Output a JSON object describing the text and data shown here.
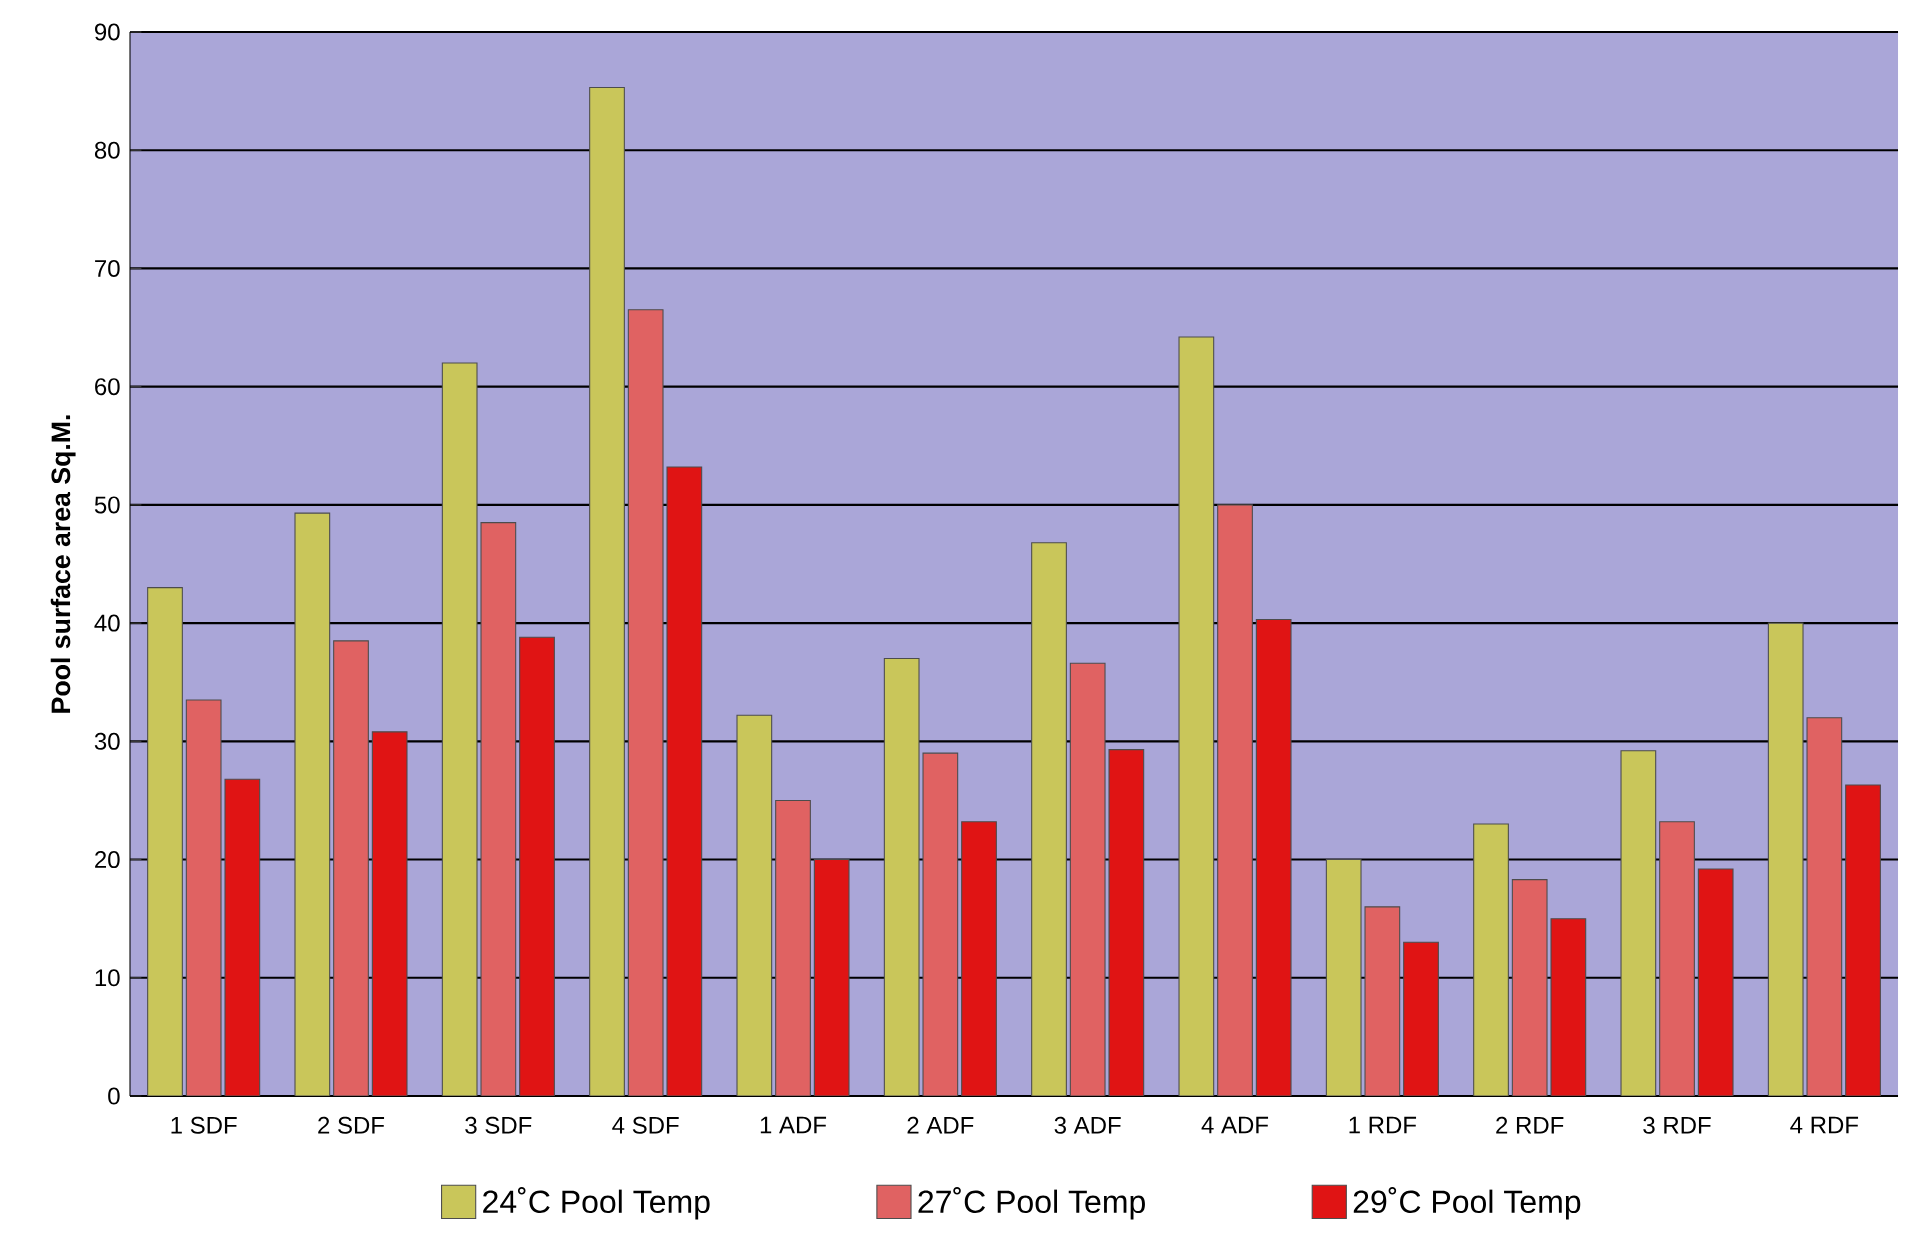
{
  "chart_data": {
    "type": "bar",
    "ylabel": "Pool surface area Sq.M.",
    "categories": [
      "1 SDF",
      "2 SDF",
      "3 SDF",
      "4 SDF",
      "1 ADF",
      "2 ADF",
      "3 ADF",
      "4 ADF",
      "1 RDF",
      "2 RDF",
      "3 RDF",
      "4 RDF"
    ],
    "series": [
      {
        "name": "24˚C Pool Temp",
        "color": "#c9c65a",
        "values": [
          43,
          49.3,
          62,
          85.3,
          32.2,
          37,
          46.8,
          64.2,
          20,
          23,
          29.2,
          40
        ]
      },
      {
        "name": "27˚C Pool Temp",
        "color": "#e06262",
        "values": [
          33.5,
          38.5,
          48.5,
          66.5,
          25,
          29,
          36.6,
          50,
          16,
          18.3,
          23.2,
          32
        ]
      },
      {
        "name": "29˚C Pool Temp",
        "color": "#e01414",
        "values": [
          26.8,
          30.8,
          38.8,
          53.2,
          20,
          23.2,
          29.3,
          40.3,
          13,
          15,
          19.2,
          26.3
        ]
      }
    ],
    "ylim": [
      0,
      90
    ],
    "yticks": [
      0,
      10,
      20,
      30,
      40,
      50,
      60,
      70,
      80,
      90
    ],
    "grid": "y",
    "legend": "bottom"
  }
}
